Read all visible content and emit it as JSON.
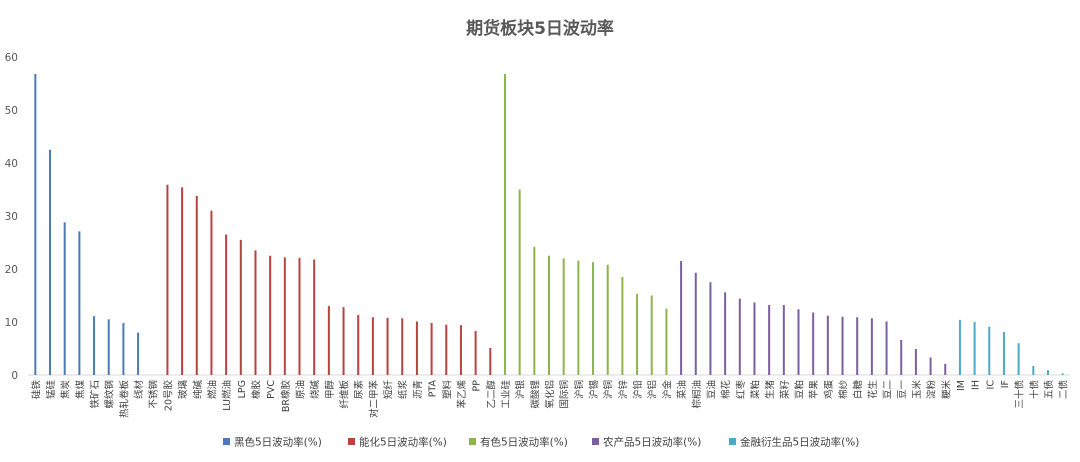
{
  "chart_data": {
    "type": "bar",
    "title": "期货板块5日波动率",
    "xlabel": "",
    "ylabel": "",
    "ylim": [
      0,
      60
    ],
    "yticks": [
      "0",
      "10",
      "20",
      "30",
      "40",
      "50",
      "60"
    ],
    "grid": false,
    "legend_position": "bottom",
    "series": [
      {
        "name": "黑色5日波动率(%)",
        "color": "#4a7ab8",
        "categories": [
          "硅铁",
          "锰硅",
          "焦炭",
          "焦煤",
          "铁矿石",
          "螺纹钢",
          "热轧卷板",
          "线材"
        ],
        "values": [
          56.8,
          42.5,
          28.8,
          27.1,
          11.1,
          10.5,
          9.8,
          8.0
        ]
      },
      {
        "name": "能化5日波动率(%)",
        "color": "#b7423f",
        "categories": [
          "不锈钢",
          "20号胶",
          "玻璃",
          "纯碱",
          "燃油",
          "LU燃油",
          "LPG",
          "橡胶",
          "PVC",
          "BR橡胶",
          "原油",
          "烧碱",
          "甲醇",
          "纤维板",
          "尿素",
          "对二甲苯",
          "短纤",
          "纸浆",
          "沥青",
          "PTA",
          "塑料",
          "苯乙烯",
          "PP",
          "乙二醇"
        ],
        "values": [
          0,
          35.9,
          35.4,
          33.8,
          31.0,
          26.5,
          25.5,
          23.5,
          22.5,
          22.2,
          22.1,
          21.8,
          13.0,
          12.8,
          11.3,
          10.9,
          10.8,
          10.7,
          10.1,
          9.8,
          9.5,
          9.4,
          8.3,
          5.1
        ]
      },
      {
        "name": "有色5日波动率(%)",
        "color": "#8db54a",
        "categories": [
          "工业硅",
          "沪银",
          "碳酸锂",
          "氧化铝",
          "国际铜",
          "沪铜",
          "沪锡",
          "沪铜",
          "沪锌",
          "沪铅",
          "沪铝",
          "沪金"
        ],
        "values": [
          56.8,
          35.0,
          24.2,
          22.5,
          22.0,
          21.6,
          21.3,
          20.8,
          18.5,
          15.3,
          15.0,
          12.5
        ]
      },
      {
        "name": "农产品5日波动率(%)",
        "color": "#7c5fa0",
        "categories": [
          "菜油",
          "棕榈油",
          "豆油",
          "棉花",
          "红枣",
          "菜粕",
          "生猪",
          "菜籽",
          "豆粕",
          "苹果",
          "鸡蛋",
          "棉纱",
          "白糖",
          "花生",
          "豆二",
          "豆一",
          "玉米",
          "淀粉",
          "粳米"
        ],
        "values": [
          21.5,
          19.3,
          17.5,
          15.6,
          14.4,
          13.7,
          13.2,
          13.2,
          12.4,
          11.8,
          11.2,
          11.0,
          10.9,
          10.7,
          10.1,
          6.6,
          4.9,
          3.3,
          2.1
        ]
      },
      {
        "name": "金融衍生品5日波动率(%)",
        "color": "#4aaac6",
        "categories": [
          "IM",
          "IH",
          "IC",
          "IF",
          "三十债",
          "十债",
          "五债",
          "二债"
        ],
        "values": [
          10.4,
          10.0,
          9.1,
          8.1,
          6.0,
          1.7,
          0.9,
          0.3
        ]
      }
    ]
  }
}
